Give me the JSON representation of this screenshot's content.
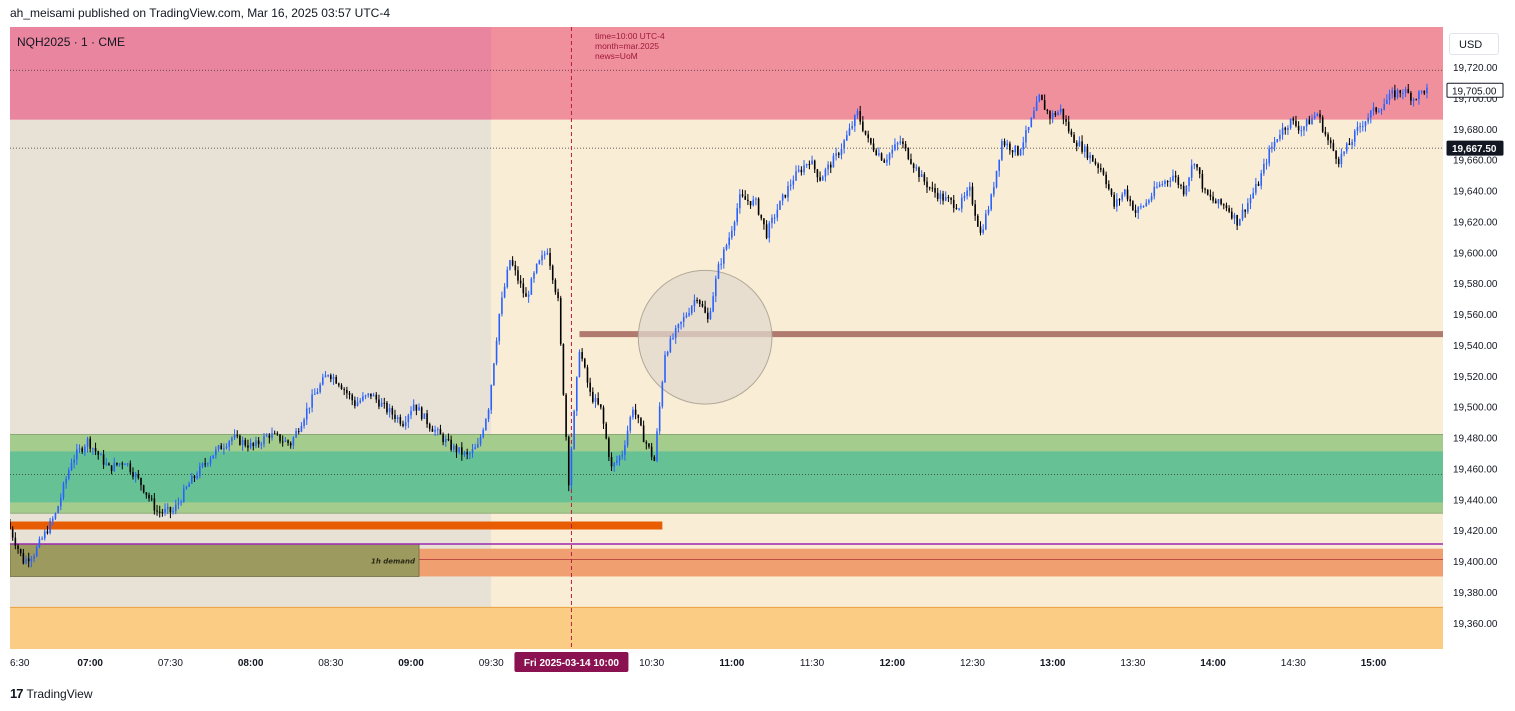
{
  "header": {
    "text": "ah_meisami published on TradingView.com, Mar 16, 2025 03:57 UTC-4"
  },
  "symbol": "NQH2025 · 1 · CME",
  "currency": "USD",
  "event_note": [
    "time=10:00 UTC-4",
    "month=mar.2025",
    "news=UoM"
  ],
  "footer": {
    "logo": "17",
    "brand": "TradingView",
    "logo_icon": "tradingview-logo-icon"
  },
  "colors": {
    "bull": "#2962ff",
    "bear": "#000000",
    "premarket_bg": "#e8e2d6",
    "session_bg": "#faedd5",
    "supply_zone": "#f08597",
    "demand_zone_light": "#a3cc8d",
    "demand_zone_dark": "#66c295",
    "orange_line": "#e85d04",
    "brown_line": "#b07a6e",
    "purple_line": "#9c27b0",
    "demand_box": "#9c9a5f",
    "demand_box_right": "#f0a070",
    "bottom_zone": "#fbcc83",
    "event_line": "#b71c48",
    "date_badge": "#8b1250"
  },
  "chart_data": {
    "type": "candlestick",
    "symbol": "NQH2025",
    "timeframe": "1",
    "exchange": "CME",
    "date": "2025-03-14",
    "x_ticks": [
      "6:30",
      "07:00",
      "07:30",
      "08:00",
      "08:30",
      "09:00",
      "09:30",
      "Fri 2025-03-14  10:00",
      "10:30",
      "11:00",
      "11:30",
      "12:00",
      "12:30",
      "13:00",
      "13:30",
      "14:00",
      "14:30",
      "15:00"
    ],
    "x_tick_minutes": [
      390,
      420,
      450,
      480,
      510,
      540,
      570,
      600,
      630,
      660,
      690,
      720,
      750,
      780,
      810,
      840,
      870,
      900
    ],
    "xlim_minutes": [
      390,
      926
    ],
    "y_ticks": [
      19360,
      19380,
      19400,
      19420,
      19440,
      19460,
      19480,
      19500,
      19520,
      19540,
      19560,
      19580,
      19600,
      19620,
      19640,
      19660,
      19680,
      19700,
      19720
    ],
    "y_tick_labels": [
      "19,360.00",
      "19,380.00",
      "19,400.00",
      "19,420.00",
      "19,440.00",
      "19,460.00",
      "19,480.00",
      "19,500.00",
      "19,520.00",
      "19,540.00",
      "19,560.00",
      "19,580.00",
      "19,600.00",
      "19,620.00",
      "19,640.00",
      "19,660.00",
      "19,680.00",
      "19,700.00",
      "19,720.00"
    ],
    "ylim": [
      19343,
      19746
    ],
    "price_labels": [
      {
        "value": 19705,
        "text": "19,705.00",
        "style": "outline"
      },
      {
        "value": 19667.5,
        "text": "19,667.50",
        "style": "filled"
      }
    ],
    "session_start_minute": 570,
    "event_minute": 600,
    "zones": [
      {
        "name": "supply",
        "from": 19686,
        "to": 19746,
        "start": 390,
        "end": 926,
        "color": "#f08597"
      },
      {
        "name": "demand-outer",
        "from": 19431,
        "to": 19482,
        "start": 390,
        "end": 926,
        "color": "#a3cc8d"
      },
      {
        "name": "demand-inner",
        "from": 19438,
        "to": 19471,
        "start": 390,
        "end": 926,
        "color": "#66c295"
      },
      {
        "name": "demand-right",
        "from": 19390,
        "to": 19408,
        "start": 543,
        "end": 926,
        "color": "#f0a070"
      },
      {
        "name": "bottom",
        "from": 19343,
        "to": 19370,
        "start": 390,
        "end": 926,
        "color": "#fbcc83"
      }
    ],
    "levels": [
      {
        "name": "supply-dotted",
        "value": 19718,
        "start": 390,
        "end": 926,
        "style": "dotted"
      },
      {
        "name": "current-dotted",
        "value": 19667.5,
        "start": 390,
        "end": 926,
        "style": "dotted"
      },
      {
        "name": "demand-dotted",
        "value": 19456,
        "start": 390,
        "end": 926,
        "style": "dotted"
      },
      {
        "name": "orange-level",
        "value": 19423,
        "start": 390,
        "end": 634,
        "style": "thick"
      },
      {
        "name": "brown-level",
        "value": 19547,
        "start": 603,
        "end": 926,
        "style": "thick"
      },
      {
        "name": "purple-level",
        "value": 19411,
        "start": 390,
        "end": 926,
        "style": "line"
      },
      {
        "name": "red-thin",
        "value": 19401,
        "start": 543,
        "end": 926,
        "style": "line"
      }
    ],
    "demand_box": {
      "label": "1h demand",
      "from": 19390,
      "to": 19411,
      "start": 390,
      "end": 543
    },
    "circle": {
      "center_minute": 650,
      "center_price": 19545,
      "radius_minutes": 25
    },
    "ohlc_path": [
      [
        390,
        19425
      ],
      [
        396,
        19400
      ],
      [
        400,
        19405
      ],
      [
        408,
        19430
      ],
      [
        414,
        19465
      ],
      [
        420,
        19478
      ],
      [
        428,
        19460
      ],
      [
        434,
        19465
      ],
      [
        440,
        19450
      ],
      [
        446,
        19432
      ],
      [
        452,
        19432
      ],
      [
        458,
        19450
      ],
      [
        466,
        19468
      ],
      [
        474,
        19480
      ],
      [
        482,
        19474
      ],
      [
        488,
        19482
      ],
      [
        496,
        19476
      ],
      [
        504,
        19505
      ],
      [
        510,
        19522
      ],
      [
        514,
        19516
      ],
      [
        520,
        19502
      ],
      [
        526,
        19508
      ],
      [
        532,
        19498
      ],
      [
        538,
        19490
      ],
      [
        542,
        19502
      ],
      [
        548,
        19488
      ],
      [
        556,
        19474
      ],
      [
        562,
        19468
      ],
      [
        566,
        19474
      ],
      [
        570,
        19500
      ],
      [
        574,
        19560
      ],
      [
        578,
        19595
      ],
      [
        584,
        19570
      ],
      [
        588,
        19590
      ],
      [
        592,
        19602
      ],
      [
        596,
        19568
      ],
      [
        600,
        19452
      ],
      [
        604,
        19538
      ],
      [
        608,
        19508
      ],
      [
        612,
        19498
      ],
      [
        616,
        19460
      ],
      [
        620,
        19470
      ],
      [
        624,
        19500
      ],
      [
        628,
        19480
      ],
      [
        632,
        19465
      ],
      [
        636,
        19535
      ],
      [
        640,
        19548
      ],
      [
        644,
        19560
      ],
      [
        648,
        19572
      ],
      [
        652,
        19556
      ],
      [
        656,
        19590
      ],
      [
        660,
        19610
      ],
      [
        664,
        19635
      ],
      [
        670,
        19632
      ],
      [
        674,
        19612
      ],
      [
        678,
        19628
      ],
      [
        684,
        19648
      ],
      [
        690,
        19660
      ],
      [
        694,
        19648
      ],
      [
        700,
        19662
      ],
      [
        704,
        19675
      ],
      [
        708,
        19690
      ],
      [
        712,
        19672
      ],
      [
        718,
        19660
      ],
      [
        724,
        19672
      ],
      [
        728,
        19660
      ],
      [
        732,
        19648
      ],
      [
        736,
        19640
      ],
      [
        740,
        19635
      ],
      [
        746,
        19630
      ],
      [
        750,
        19640
      ],
      [
        754,
        19612
      ],
      [
        758,
        19635
      ],
      [
        762,
        19672
      ],
      [
        768,
        19665
      ],
      [
        772,
        19680
      ],
      [
        776,
        19700
      ],
      [
        780,
        19688
      ],
      [
        784,
        19692
      ],
      [
        788,
        19675
      ],
      [
        792,
        19668
      ],
      [
        796,
        19660
      ],
      [
        800,
        19652
      ],
      [
        804,
        19630
      ],
      [
        808,
        19640
      ],
      [
        812,
        19626
      ],
      [
        816,
        19632
      ],
      [
        820,
        19642
      ],
      [
        826,
        19650
      ],
      [
        830,
        19640
      ],
      [
        834,
        19660
      ],
      [
        838,
        19638
      ],
      [
        842,
        19632
      ],
      [
        846,
        19630
      ],
      [
        850,
        19620
      ],
      [
        854,
        19632
      ],
      [
        858,
        19645
      ],
      [
        862,
        19665
      ],
      [
        866,
        19678
      ],
      [
        870,
        19685
      ],
      [
        874,
        19680
      ],
      [
        880,
        19690
      ],
      [
        884,
        19672
      ],
      [
        888,
        19660
      ],
      [
        892,
        19670
      ],
      [
        896,
        19682
      ],
      [
        900,
        19690
      ],
      [
        904,
        19695
      ],
      [
        908,
        19702
      ],
      [
        912,
        19705
      ],
      [
        916,
        19700
      ],
      [
        920,
        19705
      ]
    ]
  }
}
